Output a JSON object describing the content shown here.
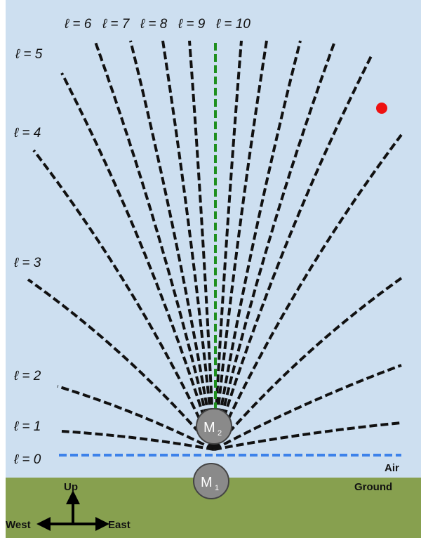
{
  "colors": {
    "sky": "#cddff0",
    "ground": "#87a04f",
    "field_line": "#111111",
    "vertical_line": "#1e8f1e",
    "horizon_line": "#3d82ea",
    "mass": "#8a8a8a",
    "mass_edge": "#444444",
    "marker": "#ee1111"
  },
  "field_lines": {
    "left_labels": [
      "ℓ = 0",
      "ℓ = 1",
      "ℓ = 2",
      "ℓ = 3",
      "ℓ = 4",
      "ℓ = 5"
    ],
    "top_labels": [
      "ℓ = 6",
      "ℓ = 7",
      "ℓ = 8",
      "ℓ = 9",
      "ℓ = 10"
    ]
  },
  "masses": {
    "upper": {
      "letter": "M",
      "subscript": "2"
    },
    "lower": {
      "letter": "M",
      "subscript": "1"
    }
  },
  "regions": {
    "air": "Air",
    "ground": "Ground"
  },
  "compass": {
    "up": "Up",
    "west": "West",
    "east": "East"
  },
  "marker": {
    "shape": "red-dot"
  }
}
